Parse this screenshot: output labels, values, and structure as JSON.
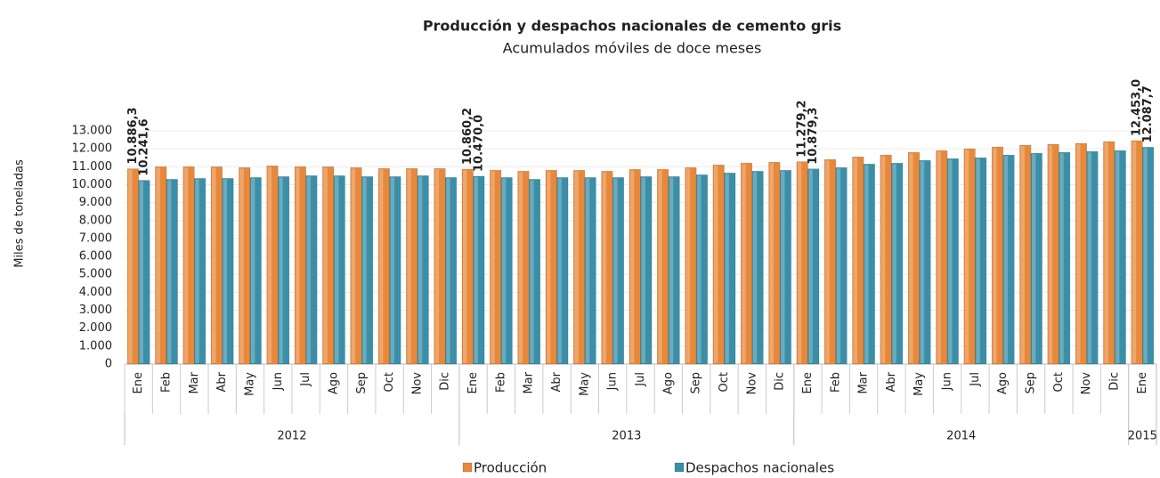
{
  "chart_data": {
    "type": "bar",
    "title": "Producción y despachos nacionales de cemento gris",
    "subtitle": "Acumulados móviles de doce meses",
    "y_label": "Miles de toneladas",
    "groups": [
      {
        "label": "2012",
        "categories": [
          "Ene",
          "Feb",
          "Mar",
          "Abr",
          "May",
          "Jun",
          "Jul",
          "Ago",
          "Sep",
          "Oct",
          "Nov",
          "Dic"
        ]
      },
      {
        "label": "2013",
        "categories": [
          "Ene",
          "Feb",
          "Mar",
          "Abr",
          "May",
          "Jun",
          "Jul",
          "Ago",
          "Sep",
          "Oct",
          "Nov",
          "Dic"
        ]
      },
      {
        "label": "2014",
        "categories": [
          "Ene",
          "Feb",
          "Mar",
          "Abr",
          "May",
          "Jun",
          "Jul",
          "Ago",
          "Sep",
          "Oct",
          "Nov",
          "Dic"
        ]
      },
      {
        "label": "2015",
        "categories": [
          "Ene"
        ]
      }
    ],
    "series": [
      {
        "name": "Producción",
        "color": "#e8883a",
        "label_color": "#e07b26",
        "values": [
          10886.3,
          11000,
          11000,
          11000,
          10950,
          11050,
          11000,
          11000,
          10950,
          10900,
          10900,
          10900,
          10860.2,
          10800,
          10750,
          10800,
          10800,
          10750,
          10850,
          10850,
          10950,
          11100,
          11200,
          11250,
          11279.2,
          11400,
          11550,
          11650,
          11800,
          11900,
          12000,
          12100,
          12200,
          12250,
          12300,
          12400,
          12453.0
        ],
        "value_labels": [
          "10.886,3",
          null,
          null,
          null,
          null,
          null,
          null,
          null,
          null,
          null,
          null,
          null,
          "10.860,2",
          null,
          null,
          null,
          null,
          null,
          null,
          null,
          null,
          null,
          null,
          null,
          "11.279,2",
          null,
          null,
          null,
          null,
          null,
          null,
          null,
          null,
          null,
          null,
          null,
          "12.453,0"
        ]
      },
      {
        "name": "Despachos nacionales",
        "color": "#3a8fa8",
        "label_color": "#31849b",
        "values": [
          10241.6,
          10300,
          10350,
          10350,
          10400,
          10450,
          10500,
          10500,
          10450,
          10450,
          10500,
          10400,
          10470.0,
          10400,
          10300,
          10400,
          10400,
          10400,
          10450,
          10450,
          10550,
          10650,
          10750,
          10800,
          10879.3,
          10950,
          11150,
          11200,
          11350,
          11450,
          11500,
          11650,
          11750,
          11800,
          11850,
          11900,
          12087.7
        ],
        "value_labels": [
          "10.241,6",
          null,
          null,
          null,
          null,
          null,
          null,
          null,
          null,
          null,
          null,
          null,
          "10.470,0",
          null,
          null,
          null,
          null,
          null,
          null,
          null,
          null,
          null,
          null,
          null,
          "10.879,3",
          null,
          null,
          null,
          null,
          null,
          null,
          null,
          null,
          null,
          null,
          null,
          "12.087,7"
        ]
      }
    ],
    "ylim": [
      0,
      13000
    ],
    "yticks": [
      0,
      {
        "value": 1000,
        "label": "1.000"
      },
      {
        "value": 2000,
        "label": "2.000"
      },
      {
        "value": 3000,
        "label": "3.000"
      },
      {
        "value": 4000,
        "label": "4.000"
      },
      {
        "value": 5000,
        "label": "5.000"
      },
      {
        "value": 6000,
        "label": "6.000"
      },
      {
        "value": 7000,
        "label": "7.000"
      },
      {
        "value": 8000,
        "label": "8.000"
      },
      {
        "value": 9000,
        "label": "9.000"
      },
      {
        "value": 10000,
        "label": "10.000"
      },
      {
        "value": 11000,
        "label": "11.000"
      },
      {
        "value": 12000,
        "label": "12.000"
      },
      {
        "value": 13000,
        "label": "13.000"
      }
    ],
    "grid": true
  }
}
